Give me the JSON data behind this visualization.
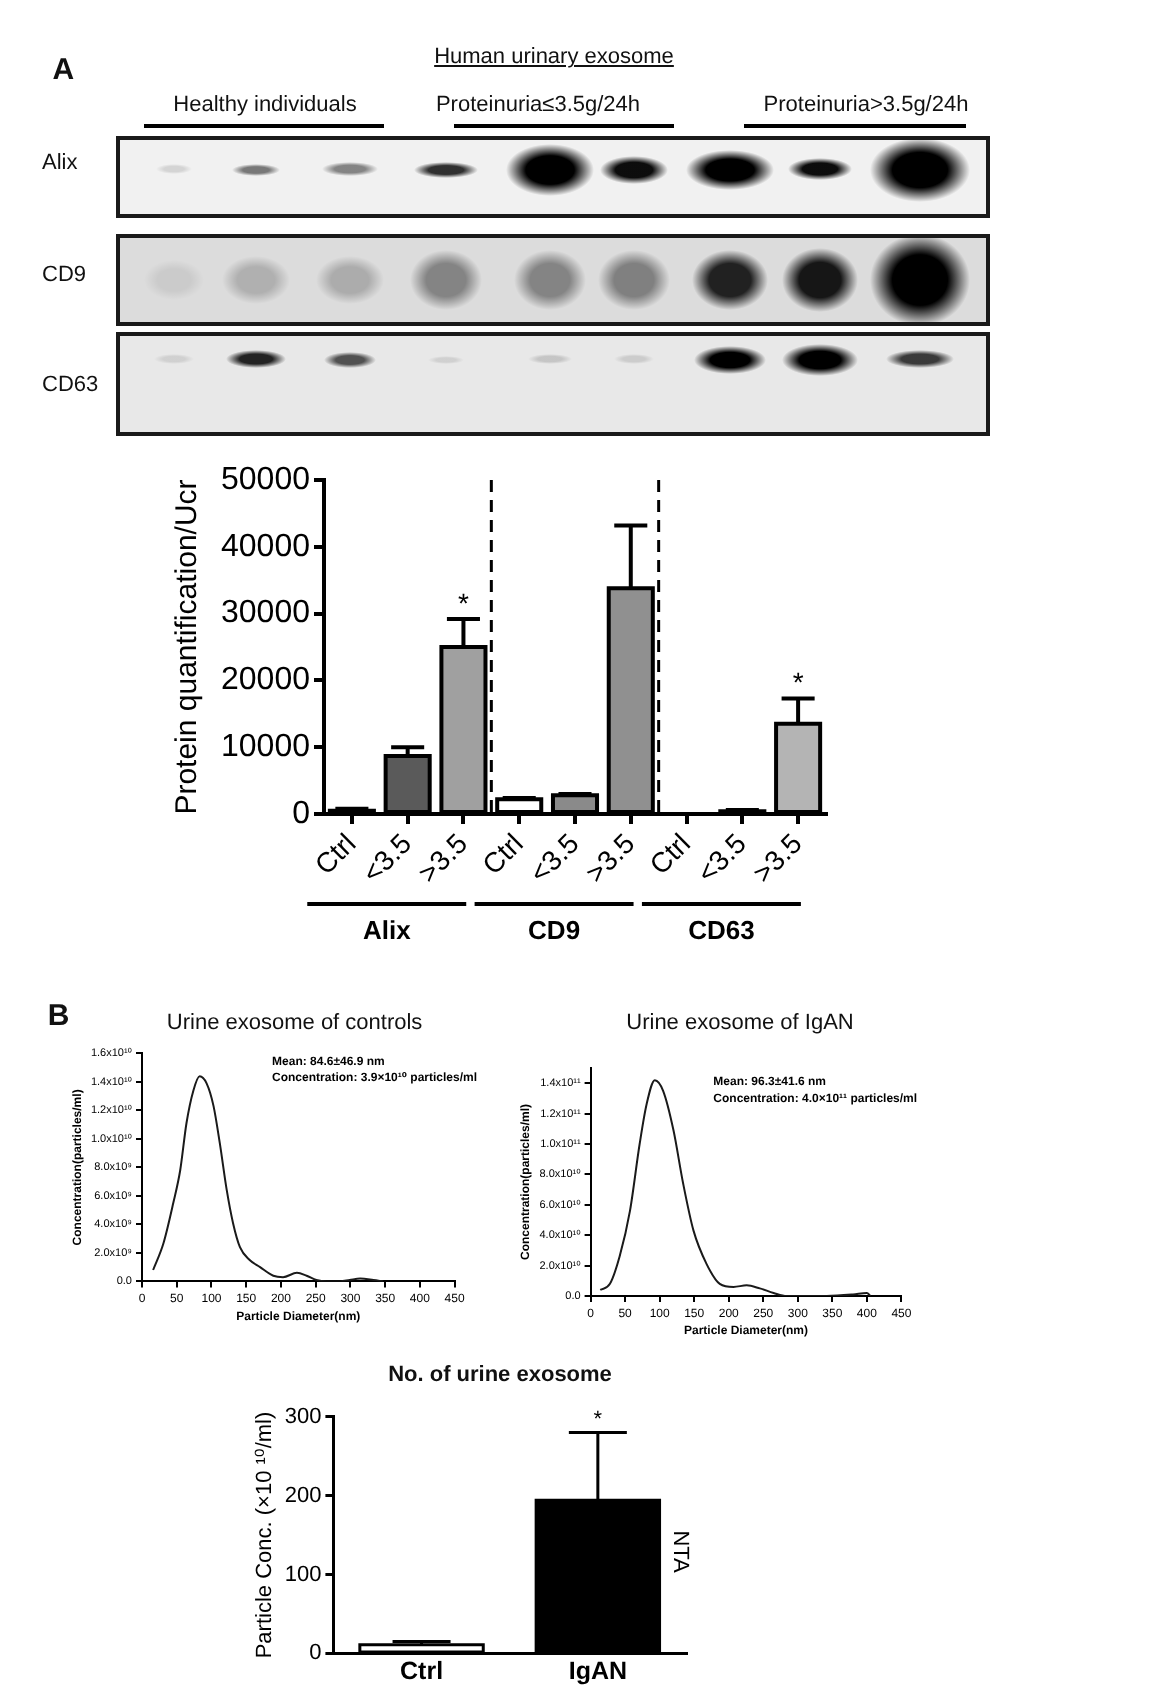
{
  "chart_data": [
    {
      "type": "other",
      "title": "Human urinary exosome",
      "categories": [
        "Healthy individuals",
        "Proteinuria≤3.5g/24h",
        "Proteinuria>3.5g/24h"
      ],
      "y_categories": [
        "Alix",
        "CD9",
        "CD63"
      ],
      "annotations": [
        "A"
      ]
    },
    {
      "type": "bar",
      "ylabel": "Protein quantification/Ucr",
      "categories": [
        "Ctrl",
        "<3.5",
        ">3.5",
        "Ctrl",
        "<3.5",
        ">3.5",
        "Ctrl",
        "<3.5",
        ">3.5"
      ],
      "values": [
        500,
        8700,
        25000,
        2200,
        2800,
        33800,
        0,
        400,
        13500
      ],
      "errors": [
        [
          500,
          800
        ],
        [
          8700,
          10000
        ],
        [
          25000,
          29200
        ],
        [
          2200,
          2400
        ],
        [
          2800,
          3000
        ],
        [
          33800,
          43200
        ],
        null,
        [
          400,
          600
        ],
        [
          13500,
          17300
        ]
      ],
      "colors": [
        "#000000",
        "#5a5a5a",
        "#a0a0a0",
        "#ffffff",
        "#8a8a8a",
        "#909090",
        "#ffffff",
        "#8a8a8a",
        "#b4b4b4"
      ],
      "value_labels": [
        null,
        null,
        "*",
        null,
        null,
        null,
        null,
        null,
        "*"
      ],
      "ylim": [
        0,
        50000
      ],
      "yticks": [
        0,
        10000,
        20000,
        30000,
        40000,
        50000
      ],
      "annotations": [
        "Alix",
        "CD9",
        "CD63"
      ]
    },
    {
      "type": "line",
      "title": "Urine exosome of controls",
      "xlabel": "Particle Diameter(nm)",
      "ylabel": "Concentration(particles/ml)",
      "x": [
        16,
        31,
        45,
        55,
        64,
        74,
        83,
        93,
        103,
        112,
        122,
        131,
        141,
        155,
        170,
        189,
        203,
        223,
        237,
        251,
        266,
        285,
        299,
        314,
        333,
        347
      ],
      "values": [
        800000000.0,
        2700000000.0,
        5500000000.0,
        7800000000.0,
        11100000000.0,
        13400000000.0,
        14400000000.0,
        13900000000.0,
        12300000000.0,
        9700000000.0,
        6400000000.0,
        4100000000.0,
        2400000000.0,
        1500000000.0,
        1000000000.0,
        400000000.0,
        300000000.0,
        600000000.0,
        400000000.0,
        100000000.0,
        0,
        0,
        100000000.0,
        200000000.0,
        100000000.0,
        0
      ],
      "color": "#1a1a1a",
      "xlim": [
        0,
        450
      ],
      "xticks": [
        0,
        50,
        100,
        150,
        200,
        250,
        300,
        350,
        400,
        450
      ],
      "ylim": [
        0,
        16000000000.0
      ],
      "yticks": [
        {
          "value": 0,
          "label": "0.0"
        },
        {
          "value": 2000000000.0,
          "label": "2.0x10⁹"
        },
        {
          "value": 4000000000.0,
          "label": "4.0x10⁹"
        },
        {
          "value": 6000000000.0,
          "label": "6.0x10⁹"
        },
        {
          "value": 8000000000.0,
          "label": "8.0x10⁹"
        },
        {
          "value": 10000000000.0,
          "label": "1.0x10¹⁰"
        },
        {
          "value": 12000000000.0,
          "label": "1.2x10¹⁰"
        },
        {
          "value": 14000000000.0,
          "label": "1.4x10¹⁰"
        },
        {
          "value": 16000000000.0,
          "label": "1.6x10¹⁰"
        }
      ],
      "annotations": [
        "B",
        "Mean: 84.6±46.9 nm",
        "Concentration: 3.9×10¹⁰ particles/ml"
      ]
    },
    {
      "type": "line",
      "title": "Urine exosome of IgAN",
      "xlabel": "Particle Diameter(nm)",
      "ylabel": "Concentration(particles/ml)",
      "x": [
        14,
        28,
        42,
        57,
        71,
        81,
        93,
        105,
        120,
        134,
        149,
        168,
        187,
        207,
        226,
        245,
        265,
        284,
        342,
        380,
        400,
        405
      ],
      "values": [
        4000000000.0,
        8000000000.0,
        26000000000.0,
        56000000000.0,
        100000000000.0,
        126000000000.0,
        142000000000.0,
        135000000000.0,
        109000000000.0,
        74000000000.0,
        43000000000.0,
        21000000000.0,
        8000000000.0,
        6000000000.0,
        7000000000.0,
        5000000000.0,
        2000000000.0,
        0,
        0,
        1000000000.0,
        2000000000.0,
        0
      ],
      "color": "#1a1a1a",
      "xlim": [
        0,
        450
      ],
      "xticks": [
        0,
        50,
        100,
        150,
        200,
        250,
        300,
        350,
        400,
        450
      ],
      "ylim": [
        0,
        150000000000.0
      ],
      "yticks": [
        {
          "value": 0,
          "label": "0.0"
        },
        {
          "value": 20000000000.0,
          "label": "2.0x10¹⁰"
        },
        {
          "value": 40000000000.0,
          "label": "4.0x10¹⁰"
        },
        {
          "value": 60000000000.0,
          "label": "6.0x10¹⁰"
        },
        {
          "value": 80000000000.0,
          "label": "8.0x10¹⁰"
        },
        {
          "value": 100000000000.0,
          "label": "1.0x10¹¹"
        },
        {
          "value": 120000000000.0,
          "label": "1.2x10¹¹"
        },
        {
          "value": 140000000000.0,
          "label": "1.4x10¹¹"
        }
      ],
      "annotations": [
        "Mean: 96.3±41.6 nm",
        "Concentration: 4.0×10¹¹ particles/ml"
      ]
    },
    {
      "type": "bar",
      "title": "No. of urine exosome",
      "ylabel": "Particle Conc. (×10 ¹⁰/ml)",
      "categories": [
        "Ctrl",
        "IgAN"
      ],
      "values": [
        11,
        194
      ],
      "errors": [
        [
          11,
          15
        ],
        [
          194,
          280
        ]
      ],
      "colors": [
        "#ffffff",
        "#000000"
      ],
      "value_labels": [
        null,
        "*"
      ],
      "ylim": [
        0,
        300
      ],
      "yticks": [
        0,
        100,
        200,
        300
      ],
      "annotations": [
        "NTA"
      ]
    }
  ]
}
